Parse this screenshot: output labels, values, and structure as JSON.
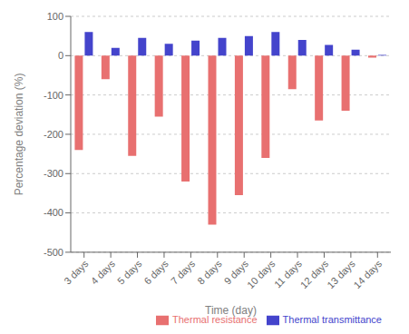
{
  "chart_data": {
    "type": "bar",
    "categories": [
      "3 days",
      "4 days",
      "5 days",
      "6 days",
      "7 days",
      "8 days",
      "9 days",
      "10 days",
      "11 days",
      "12 days",
      "13 days",
      "14 days"
    ],
    "series": [
      {
        "name": "Thermal resistance",
        "color": "#e87070",
        "values": [
          -240,
          -60,
          -255,
          -155,
          -320,
          -430,
          -355,
          -260,
          -85,
          -165,
          -140,
          -5
        ]
      },
      {
        "name": "Thermal transmittance",
        "color": "#4444cc",
        "values": [
          60,
          20,
          45,
          30,
          38,
          45,
          50,
          60,
          40,
          27,
          15,
          2
        ]
      }
    ],
    "xlabel": "Time (day)",
    "ylabel": "Percentage deviation (%)",
    "ylim": [
      -500,
      100
    ],
    "yticks": [
      -500,
      -400,
      -300,
      -200,
      -100,
      0,
      100
    ],
    "grid": true,
    "legend": "lower right"
  }
}
